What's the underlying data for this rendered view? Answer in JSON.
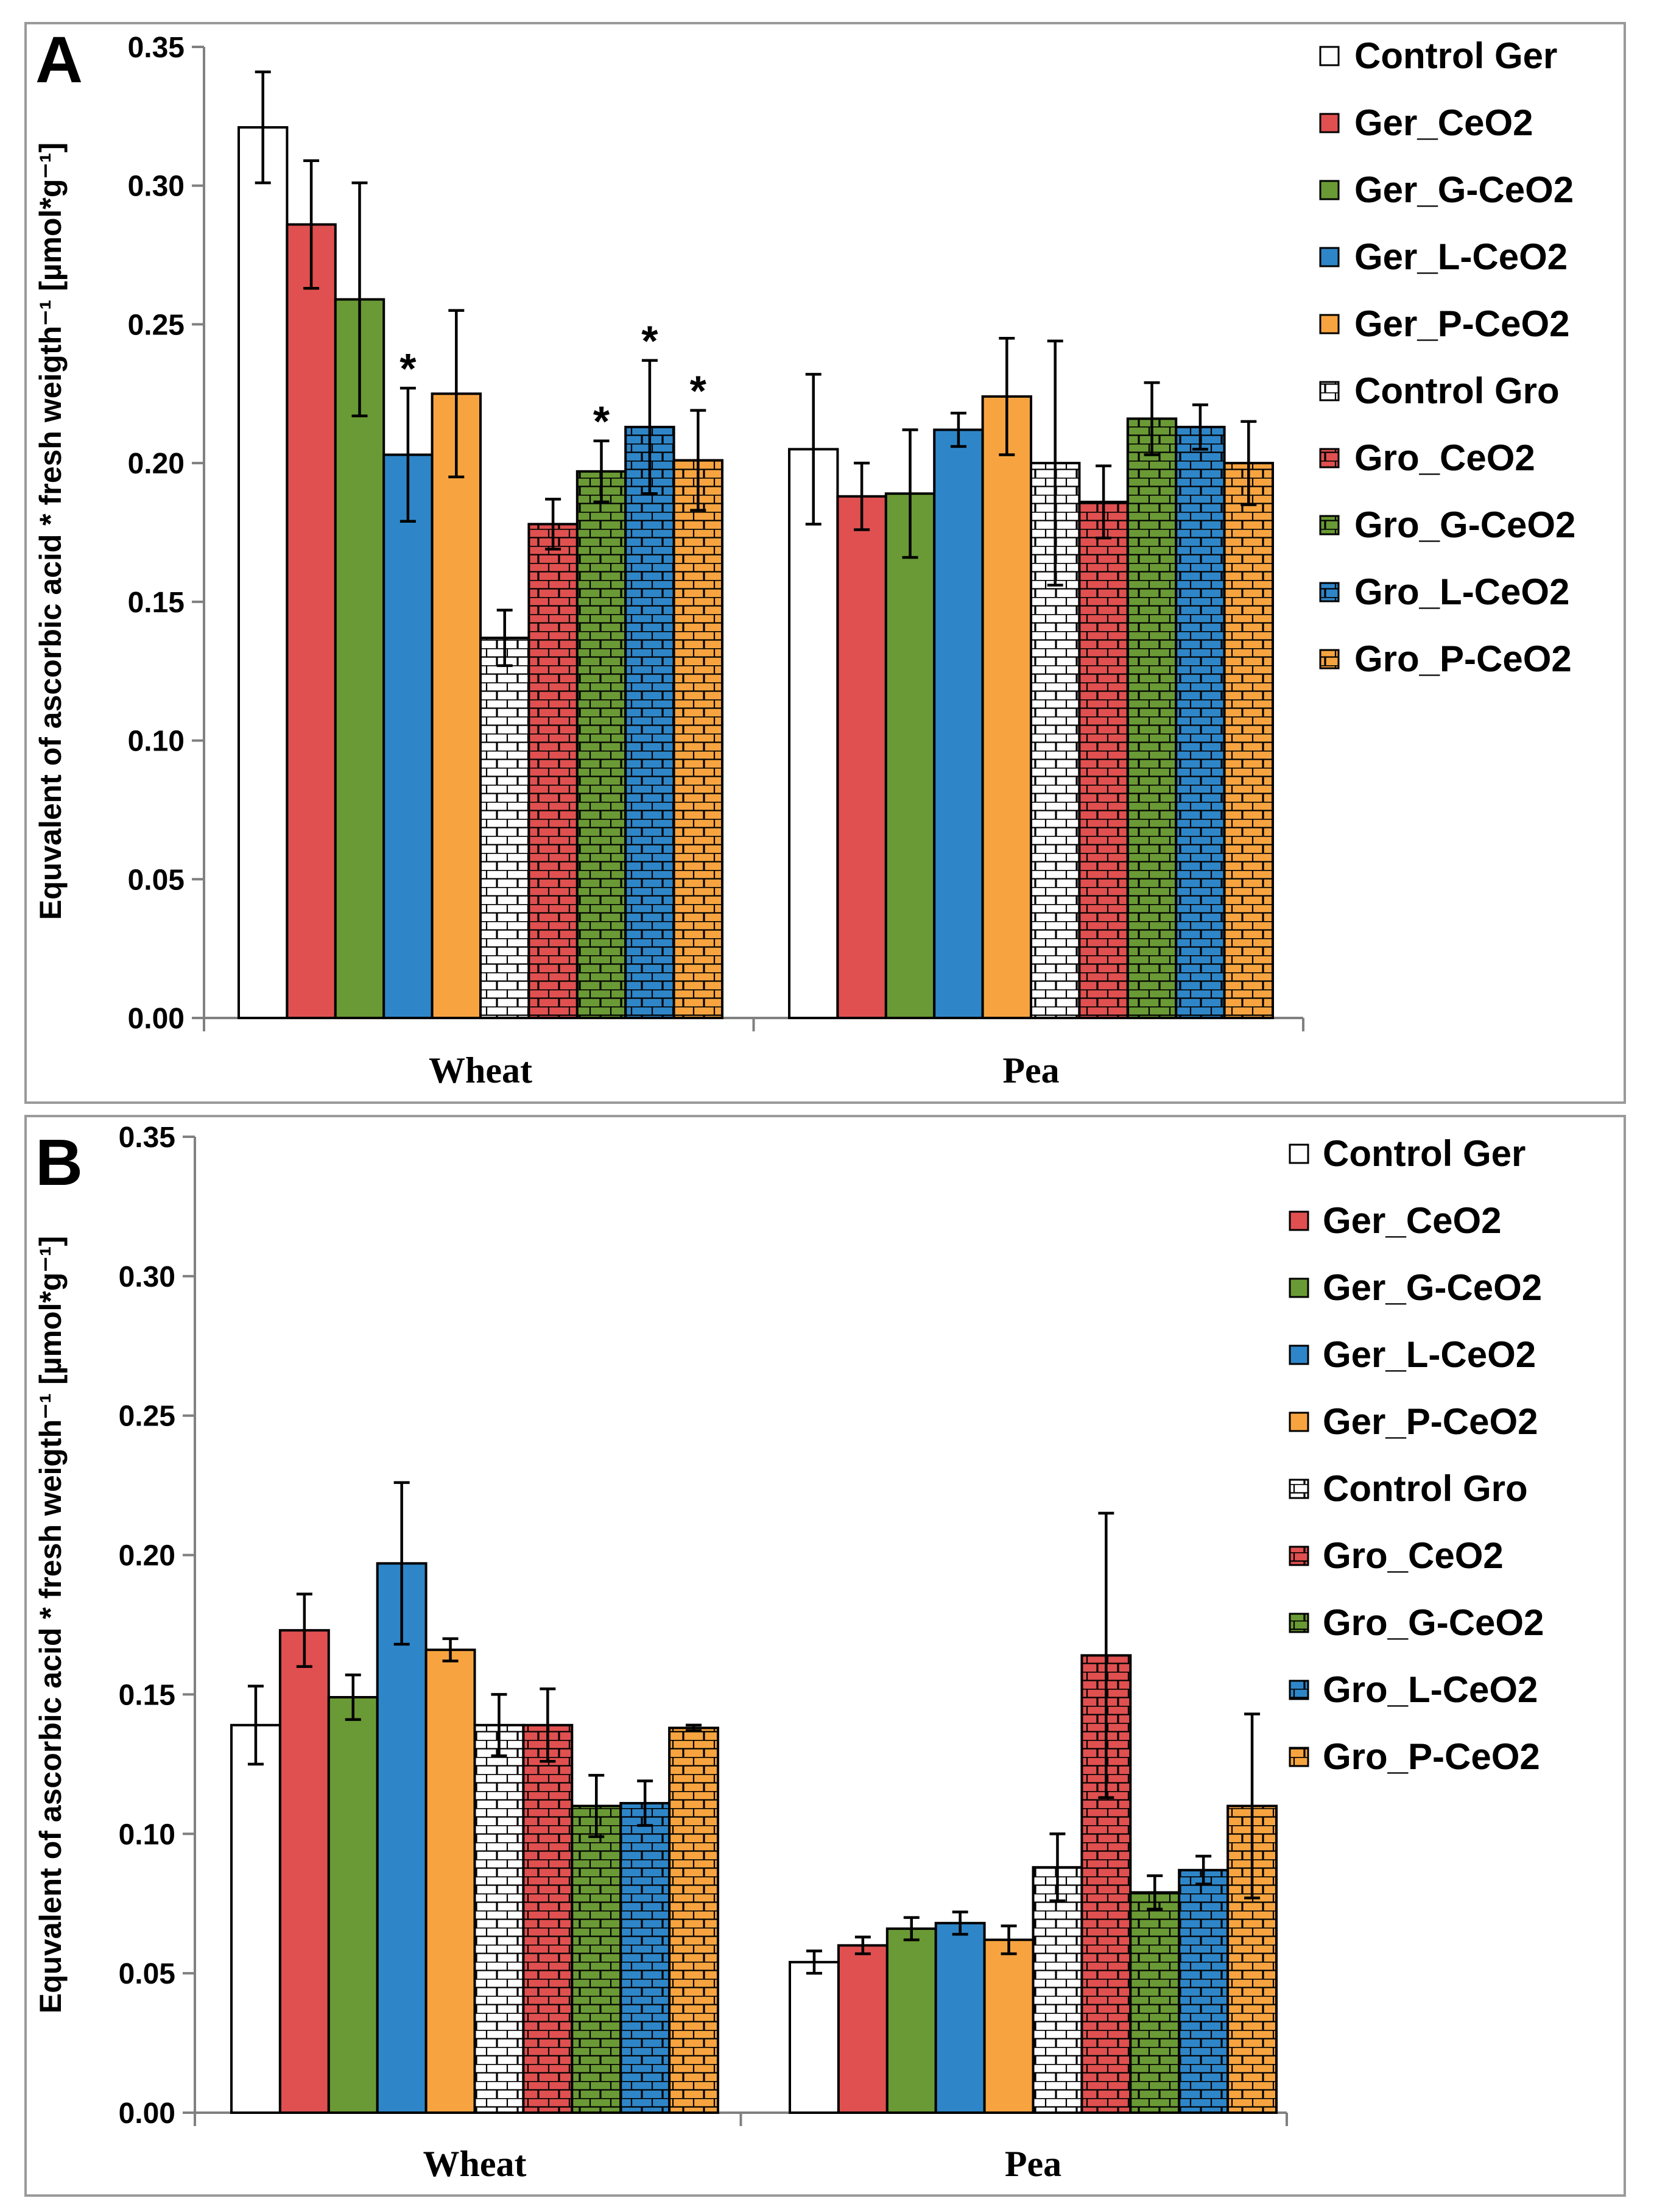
{
  "chart_data": [
    {
      "type": "bar",
      "panel_label": "A",
      "ylabel": "Equvalent of ascorbic acid * fresh weigth⁻¹ [µmol*g⁻¹]",
      "ylim": [
        0,
        0.35
      ],
      "yticks": [
        0.0,
        0.05,
        0.1,
        0.15,
        0.2,
        0.25,
        0.3,
        0.35
      ],
      "ytick_labels": [
        "0.00",
        "0.05",
        "0.10",
        "0.15",
        "0.20",
        "0.25",
        "0.30",
        "0.35"
      ],
      "categories": [
        "Wheat",
        "Pea"
      ],
      "series": [
        {
          "name": "Control Ger",
          "values": [
            0.321,
            0.205
          ],
          "errors": [
            0.02,
            0.027
          ],
          "sig": [
            false,
            false
          ]
        },
        {
          "name": "Ger_CeO2",
          "values": [
            0.286,
            0.188
          ],
          "errors": [
            0.023,
            0.012
          ],
          "sig": [
            false,
            false
          ]
        },
        {
          "name": "Ger_G-CeO2",
          "values": [
            0.259,
            0.189
          ],
          "errors": [
            0.042,
            0.023
          ],
          "sig": [
            false,
            false
          ]
        },
        {
          "name": "Ger_L-CeO2",
          "values": [
            0.203,
            0.212
          ],
          "errors": [
            0.024,
            0.006
          ],
          "sig": [
            true,
            false
          ]
        },
        {
          "name": "Ger_P-CeO2",
          "values": [
            0.225,
            0.224
          ],
          "errors": [
            0.03,
            0.021
          ],
          "sig": [
            false,
            false
          ]
        },
        {
          "name": "Control Gro",
          "values": [
            0.137,
            0.2
          ],
          "errors": [
            0.01,
            0.044
          ],
          "sig": [
            false,
            false
          ]
        },
        {
          "name": "Gro_CeO2",
          "values": [
            0.178,
            0.186
          ],
          "errors": [
            0.009,
            0.013
          ],
          "sig": [
            false,
            false
          ]
        },
        {
          "name": "Gro_G-CeO2",
          "values": [
            0.197,
            0.216
          ],
          "errors": [
            0.011,
            0.013
          ],
          "sig": [
            true,
            false
          ]
        },
        {
          "name": "Gro_L-CeO2",
          "values": [
            0.213,
            0.213
          ],
          "errors": [
            0.024,
            0.008
          ],
          "sig": [
            true,
            false
          ]
        },
        {
          "name": "Gro_P-CeO2",
          "values": [
            0.201,
            0.2
          ],
          "errors": [
            0.018,
            0.015
          ],
          "sig": [
            true,
            false
          ]
        }
      ],
      "significance_marker": "*",
      "legend_position": "right"
    },
    {
      "type": "bar",
      "panel_label": "B",
      "ylabel": "Equvalent of ascorbic acid * fresh weigth⁻¹ [µmol*g⁻¹]",
      "ylim": [
        0,
        0.35
      ],
      "yticks": [
        0.0,
        0.05,
        0.1,
        0.15,
        0.2,
        0.25,
        0.3,
        0.35
      ],
      "ytick_labels": [
        "0.00",
        "0.05",
        "0.10",
        "0.15",
        "0.20",
        "0.25",
        "0.30",
        "0.35"
      ],
      "categories": [
        "Wheat",
        "Pea"
      ],
      "series": [
        {
          "name": "Control Ger",
          "values": [
            0.139,
            0.054
          ],
          "errors": [
            0.014,
            0.004
          ],
          "sig": [
            false,
            false
          ]
        },
        {
          "name": "Ger_CeO2",
          "values": [
            0.173,
            0.06
          ],
          "errors": [
            0.013,
            0.003
          ],
          "sig": [
            false,
            false
          ]
        },
        {
          "name": "Ger_G-CeO2",
          "values": [
            0.149,
            0.066
          ],
          "errors": [
            0.008,
            0.004
          ],
          "sig": [
            false,
            false
          ]
        },
        {
          "name": "Ger_L-CeO2",
          "values": [
            0.197,
            0.068
          ],
          "errors": [
            0.029,
            0.004
          ],
          "sig": [
            false,
            false
          ]
        },
        {
          "name": "Ger_P-CeO2",
          "values": [
            0.166,
            0.062
          ],
          "errors": [
            0.004,
            0.005
          ],
          "sig": [
            false,
            false
          ]
        },
        {
          "name": "Control Gro",
          "values": [
            0.139,
            0.088
          ],
          "errors": [
            0.011,
            0.012
          ],
          "sig": [
            false,
            false
          ]
        },
        {
          "name": "Gro_CeO2",
          "values": [
            0.139,
            0.164
          ],
          "errors": [
            0.013,
            0.051
          ],
          "sig": [
            false,
            false
          ]
        },
        {
          "name": "Gro_G-CeO2",
          "values": [
            0.11,
            0.079
          ],
          "errors": [
            0.011,
            0.006
          ],
          "sig": [
            false,
            false
          ]
        },
        {
          "name": "Gro_L-CeO2",
          "values": [
            0.111,
            0.087
          ],
          "errors": [
            0.008,
            0.005
          ],
          "sig": [
            false,
            false
          ]
        },
        {
          "name": "Gro_P-CeO2",
          "values": [
            0.138,
            0.11
          ],
          "errors": [
            0.001,
            0.033
          ],
          "sig": [
            false,
            false
          ]
        }
      ],
      "legend_position": "right"
    }
  ],
  "series_styles": [
    {
      "color": "#ffffff",
      "pattern": "solid"
    },
    {
      "color": "#e05050",
      "pattern": "solid"
    },
    {
      "color": "#6a9a35",
      "pattern": "solid"
    },
    {
      "color": "#2e86c8",
      "pattern": "solid"
    },
    {
      "color": "#f7a440",
      "pattern": "solid"
    },
    {
      "color": "#ffffff",
      "pattern": "brick"
    },
    {
      "color": "#e05050",
      "pattern": "brick"
    },
    {
      "color": "#6a9a35",
      "pattern": "brick"
    },
    {
      "color": "#2e86c8",
      "pattern": "brick"
    },
    {
      "color": "#f7a440",
      "pattern": "brick"
    }
  ]
}
